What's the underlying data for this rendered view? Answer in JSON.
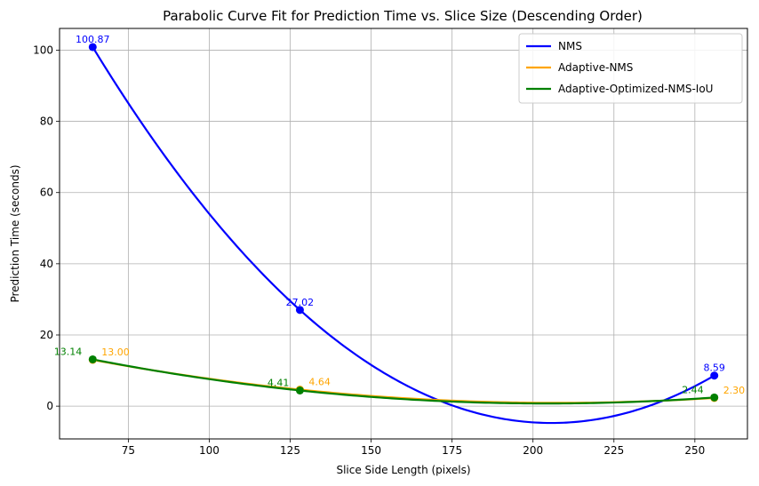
{
  "chart_data": {
    "type": "line",
    "title": "Parabolic Curve Fit for Prediction Time vs. Slice Size (Descending Order)",
    "xlabel": "Slice Side Length (pixels)",
    "ylabel": "Prediction Time (seconds)",
    "xlim": [
      53.76,
      266.24
    ],
    "ylim": [
      -9.2,
      106.1
    ],
    "xticks": [
      75,
      100,
      125,
      150,
      175,
      200,
      225,
      250
    ],
    "yticks": [
      0,
      20,
      40,
      60,
      80,
      100
    ],
    "grid": true,
    "legend_position": "top-right",
    "series": [
      {
        "name": "NMS",
        "color": "#0000ff",
        "x": [
          64,
          128,
          256
        ],
        "values": [
          100.87,
          27.02,
          8.59
        ],
        "labels": [
          "100.87",
          "27.02",
          "8.59"
        ]
      },
      {
        "name": "Adaptive-NMS",
        "color": "#ffa500",
        "x": [
          64,
          128,
          256
        ],
        "values": [
          13.0,
          4.64,
          2.3
        ],
        "labels": [
          "13.00",
          "4.64",
          "2.30"
        ]
      },
      {
        "name": "Adaptive-Optimized-NMS-IoU",
        "color": "#008000",
        "x": [
          64,
          128,
          256
        ],
        "values": [
          13.14,
          4.41,
          2.44
        ],
        "labels": [
          "13.14",
          "4.41",
          "2.44"
        ]
      }
    ]
  }
}
